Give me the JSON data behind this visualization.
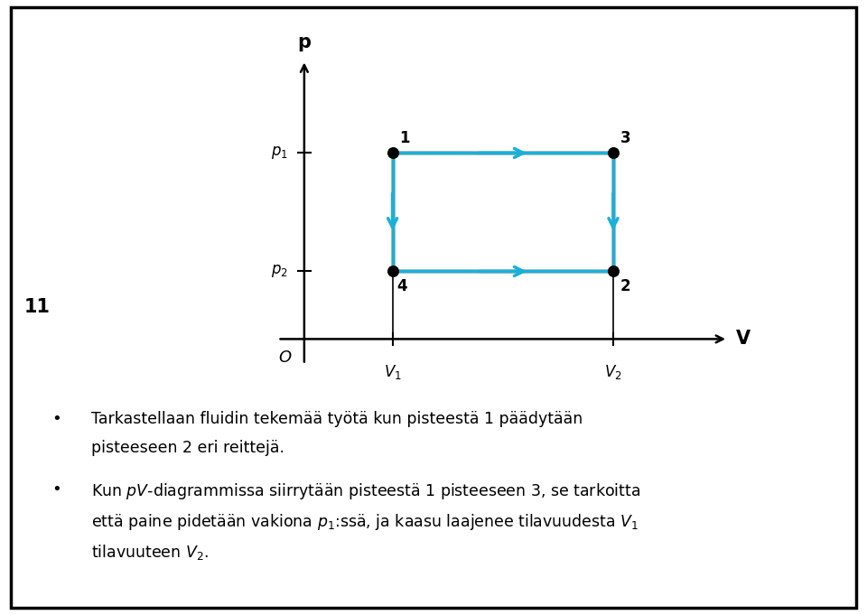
{
  "bg_color": "#ffffff",
  "border_color": "#000000",
  "box_color": "#000000",
  "arrow_color": "#1ab0d8",
  "point_color": "#000000",
  "V1": 1.0,
  "V2": 3.5,
  "p1": 2.2,
  "p2": 0.8,
  "label_11": "11",
  "bullet1": "Tarkastellaan fluidin tekemää työtä kun pisteestä 1 päädytään\npisteeseen 2 eri reittejä.",
  "b2l1": "Kun $pV$-diagrammissa siirrytään pisteestä 1 pisteeseen 3, se tarkoitta",
  "b2l2": "että paine pidetään vakiona $p_1$:ssä, ja kaasu laajenee tilavuudesta $V_1$",
  "b2l3": "tilavuuteen $V_2$."
}
